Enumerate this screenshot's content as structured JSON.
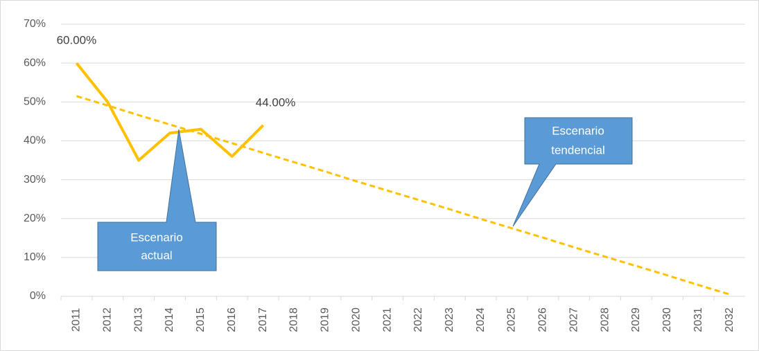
{
  "chart_data": {
    "type": "line",
    "categories": [
      "2011",
      "2012",
      "2013",
      "2014",
      "2015",
      "2016",
      "2017",
      "2018",
      "2019",
      "2020",
      "2021",
      "2022",
      "2023",
      "2024",
      "2025",
      "2026",
      "2027",
      "2028",
      "2029",
      "2030",
      "2031",
      "2032"
    ],
    "series": [
      {
        "color": "#ffc000",
        "values": [
          60,
          50,
          35,
          42,
          43,
          36,
          44,
          null,
          null,
          null,
          null,
          null,
          null,
          null,
          null,
          null,
          null,
          null,
          null,
          null,
          null,
          null
        ],
        "value_labels": [
          "60.00%",
          null,
          null,
          null,
          null,
          null,
          "44.00%",
          null,
          null,
          null,
          null,
          null,
          null,
          null,
          null,
          null,
          null,
          null,
          null,
          null,
          null,
          null
        ]
      },
      {
        "color": "#ffc000",
        "dashed": true,
        "values": [
          51.5,
          49.1,
          46.6,
          44.2,
          41.8,
          39.4,
          36.9,
          34.5,
          32.1,
          29.6,
          27.2,
          24.8,
          22.4,
          19.9,
          17.5,
          15.1,
          12.6,
          10.2,
          7.8,
          5.4,
          2.9,
          0.5
        ]
      }
    ],
    "ylim": [
      0,
      70
    ],
    "yticks": [
      {
        "value": 0,
        "label": "0%"
      },
      {
        "value": 10,
        "label": "10%"
      },
      {
        "value": 20,
        "label": "20%"
      },
      {
        "value": 30,
        "label": "30%"
      },
      {
        "value": 40,
        "label": "40%"
      },
      {
        "value": 50,
        "label": "50%"
      },
      {
        "value": 60,
        "label": "60%"
      },
      {
        "value": 70,
        "label": "70%"
      }
    ],
    "grid": true,
    "annotations": [
      {
        "lines": [
          "Escenario",
          "actual"
        ]
      },
      {
        "lines": [
          "Escenario",
          "tendencial"
        ]
      }
    ]
  }
}
